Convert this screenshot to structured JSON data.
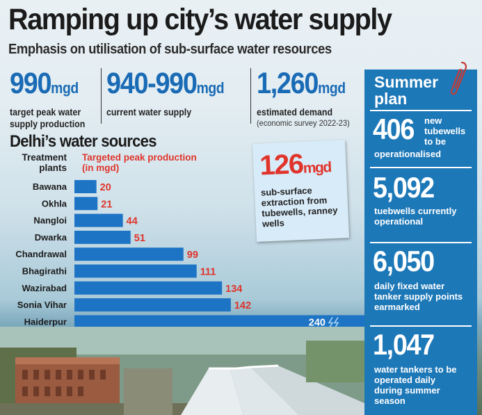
{
  "headline": "Ramping up city’s water supply",
  "subhead": "Emphasis on utilisation of sub-surface water resources",
  "stats": [
    {
      "value": "990",
      "unit": "mgd",
      "caption_line1": "target peak water",
      "caption_line2": "supply production",
      "note": ""
    },
    {
      "value": "940-990",
      "unit": "mgd",
      "caption_line1": "current water supply",
      "caption_line2": "",
      "note": ""
    },
    {
      "value": "1,260",
      "unit": "mgd",
      "caption_line1": "estimated demand",
      "caption_line2": "",
      "note": "(economic survey 2022-23)"
    }
  ],
  "sources": {
    "title": "Delhi’s water sources",
    "col_left_line1": "Treatment",
    "col_left_line2": "plants",
    "col_right_line1": "Targeted peak production",
    "col_right_line2": "(in mgd)"
  },
  "callout": {
    "value": "126",
    "unit": "mgd",
    "line1": "sub-surface",
    "line2": "extraction from",
    "line3": "tubewells, ranney",
    "line4": "wells"
  },
  "summer_plan": {
    "title_line1": "Summer",
    "title_line2": "plan",
    "items": [
      {
        "value": "406",
        "text1": "new",
        "text2": "tubewells",
        "text3": "to be",
        "text4": "operationalised"
      },
      {
        "value": "5,092",
        "text1": "tuebwells currently",
        "text2": "operational"
      },
      {
        "value": "6,050",
        "text1": "daily fixed water",
        "text2": "tanker supply points",
        "text3": "earmarked"
      },
      {
        "value": "1,047",
        "text1": "water tankers to be",
        "text2": "operated daily",
        "text3": "during summer",
        "text4": "season"
      }
    ]
  },
  "colors": {
    "accent_blue": "#1a6bb5",
    "bar_blue": "#1e74c4",
    "label_red": "#e0342b",
    "panel_blue": "#1d78b8"
  },
  "chart_data": {
    "type": "bar",
    "orientation": "horizontal",
    "title": "Delhi’s water sources",
    "categories": [
      "Bawana",
      "Okhla",
      "Nangloi",
      "Dwarka",
      "Chandrawal",
      "Bhagirathi",
      "Wazirabad",
      "Sonia Vihar",
      "Haiderpur"
    ],
    "values": [
      20,
      21,
      44,
      51,
      99,
      111,
      134,
      142,
      240
    ],
    "value_labels": [
      "20",
      "21",
      "44",
      "51",
      "99",
      "111",
      "134",
      "142",
      "240"
    ],
    "xlabel": "Targeted peak production (in mgd)",
    "ylabel": "Treatment plants"
  }
}
